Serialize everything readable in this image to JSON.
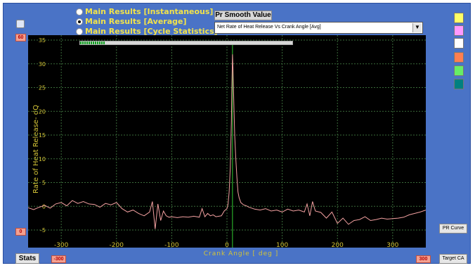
{
  "radios": [
    {
      "label": "Main Results [Instantaneous]",
      "selected": false
    },
    {
      "label": "Main Results [Average]",
      "selected": true
    },
    {
      "label": "Main Results [Cycle Statistics]",
      "selected": false
    }
  ],
  "smooth_button": "Pr Smooth Value",
  "plot_select": "Net Rate of Heat Release Vs Crank Angle [Avg]",
  "swatches": [
    "#ffff66",
    "#ff99ff",
    "#ffffff",
    "#ff7f50",
    "#66ee66",
    "#008080"
  ],
  "y_max_box": "60",
  "y_min_box": "0",
  "x_min_box": "-300",
  "x_max_box": "300",
  "stats_button": "Stats",
  "pr_curve_button": "PR Curve",
  "target_ca_button": "Target CA",
  "progress": 0.12,
  "colors": {
    "frame": "#4a73c6",
    "plot_bg": "#000000",
    "curve": "#f2a0a0",
    "axis_text": "#d4c437",
    "marker": "#33cc33"
  },
  "chart_data": {
    "type": "line",
    "xlabel": "Crank Angle [ deg ]",
    "ylabel": "Rate of Heat Release- dQ",
    "xlim": [
      -360,
      360
    ],
    "ylim": [
      -5,
      35
    ],
    "xticks": [
      -300,
      -200,
      -100,
      0,
      100,
      200,
      300
    ],
    "yticks": [
      35,
      30,
      25,
      20,
      15,
      10,
      5,
      0,
      -5
    ],
    "marker_x": 10,
    "series": [
      {
        "x": [
          -360,
          -350,
          -340,
          -330,
          -320,
          -310,
          -300,
          -290,
          -280,
          -270,
          -260,
          -250,
          -240,
          -230,
          -220,
          -210,
          -200,
          -190,
          -180,
          -170,
          -160,
          -150,
          -140,
          -135,
          -130,
          -125,
          -120,
          -115,
          -110,
          -105,
          -100,
          -90,
          -80,
          -70,
          -60,
          -50,
          -45,
          -40,
          -35,
          -30,
          -25,
          -20,
          -10,
          -5,
          0,
          2,
          4,
          6,
          8,
          9,
          10,
          11,
          12,
          14,
          16,
          18,
          20,
          22,
          25,
          30,
          35,
          40,
          50,
          60,
          70,
          80,
          90,
          100,
          110,
          120,
          130,
          140,
          145,
          150,
          155,
          160,
          170,
          180,
          190,
          200,
          210,
          220,
          230,
          240,
          250,
          260,
          270,
          280,
          290,
          300,
          310,
          320,
          330,
          340,
          350,
          360
        ],
        "y": [
          -0.3,
          -0.7,
          -0.2,
          0.2,
          -0.4,
          0.5,
          0.8,
          0.1,
          1.2,
          0.6,
          1.0,
          0.5,
          0.4,
          -0.2,
          0.6,
          0.3,
          0.8,
          -0.5,
          -1.2,
          -0.8,
          -1.5,
          -2.0,
          -1.2,
          1.0,
          -4.8,
          0.5,
          -3.0,
          -1.0,
          -2.0,
          -2.3,
          -2.2,
          -2.4,
          -2.2,
          -2.3,
          -2.1,
          -2.3,
          -0.5,
          -2.2,
          -1.5,
          -2.0,
          -1.8,
          -2.2,
          -2.0,
          -1.0,
          -0.5,
          0.5,
          3.0,
          8.0,
          18.0,
          26.0,
          32.0,
          29.0,
          24.0,
          15.0,
          10.0,
          6.0,
          3.0,
          1.8,
          0.8,
          0.3,
          0.1,
          -0.2,
          -0.6,
          -0.8,
          -0.5,
          -1.0,
          -0.8,
          -1.2,
          -0.6,
          -1.0,
          -0.8,
          -1.2,
          0.5,
          -2.0,
          1.0,
          -1.0,
          -1.3,
          -2.5,
          -1.2,
          -3.6,
          -2.5,
          -3.8,
          -3.0,
          -2.8,
          -2.2,
          -3.0,
          -2.8,
          -2.5,
          -2.7,
          -2.6,
          -2.5,
          -2.3,
          -1.8,
          -1.5,
          -1.2,
          -0.8
        ]
      }
    ]
  }
}
